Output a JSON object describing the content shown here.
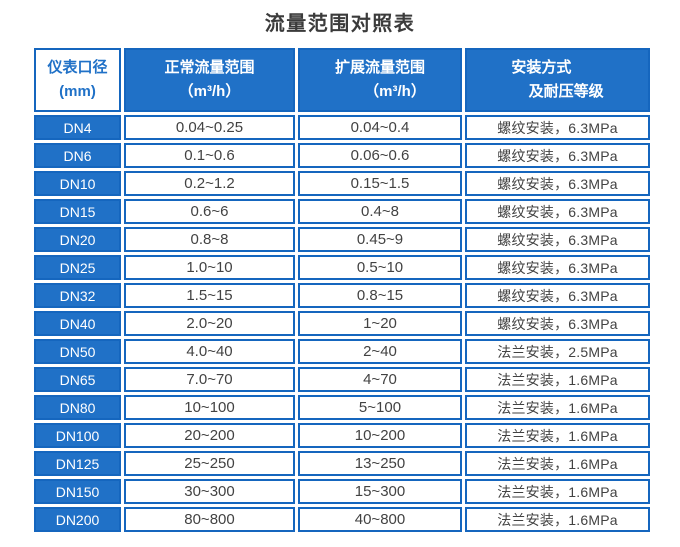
{
  "page": {
    "title": "流量范围对照表"
  },
  "colors": {
    "cell_blue": "#2071c7",
    "border_blue": "#1566be",
    "text_dark": "#424242",
    "header_text": "#ffffff"
  },
  "table": {
    "headers": {
      "diameter": {
        "line1": "仪表口径",
        "line2": "(mm)"
      },
      "normal": {
        "line1": "正常流量范围",
        "line2": "（m³/h）"
      },
      "extended": {
        "line1": "扩展流量范围",
        "line2": "（m³/h）"
      },
      "install": {
        "line1": "安装方式",
        "line2": "及耐压等级"
      }
    },
    "rows": [
      {
        "dn": "DN4",
        "normal": "0.04~0.25",
        "extended": "0.04~0.4",
        "install": "螺纹安装，6.3MPa"
      },
      {
        "dn": "DN6",
        "normal": "0.1~0.6",
        "extended": "0.06~0.6",
        "install": "螺纹安装，6.3MPa"
      },
      {
        "dn": "DN10",
        "normal": "0.2~1.2",
        "extended": "0.15~1.5",
        "install": "螺纹安装，6.3MPa"
      },
      {
        "dn": "DN15",
        "normal": "0.6~6",
        "extended": "0.4~8",
        "install": "螺纹安装，6.3MPa"
      },
      {
        "dn": "DN20",
        "normal": "0.8~8",
        "extended": "0.45~9",
        "install": "螺纹安装，6.3MPa"
      },
      {
        "dn": "DN25",
        "normal": "1.0~10",
        "extended": "0.5~10",
        "install": "螺纹安装，6.3MPa"
      },
      {
        "dn": "DN32",
        "normal": "1.5~15",
        "extended": "0.8~15",
        "install": "螺纹安装，6.3MPa"
      },
      {
        "dn": "DN40",
        "normal": "2.0~20",
        "extended": "1~20",
        "install": "螺纹安装，6.3MPa"
      },
      {
        "dn": "DN50",
        "normal": "4.0~40",
        "extended": "2~40",
        "install": "法兰安装，2.5MPa"
      },
      {
        "dn": "DN65",
        "normal": "7.0~70",
        "extended": "4~70",
        "install": "法兰安装，1.6MPa"
      },
      {
        "dn": "DN80",
        "normal": "10~100",
        "extended": "5~100",
        "install": "法兰安装，1.6MPa"
      },
      {
        "dn": "DN100",
        "normal": "20~200",
        "extended": "10~200",
        "install": "法兰安装，1.6MPa"
      },
      {
        "dn": "DN125",
        "normal": "25~250",
        "extended": "13~250",
        "install": "法兰安装，1.6MPa"
      },
      {
        "dn": "DN150",
        "normal": "30~300",
        "extended": "15~300",
        "install": "法兰安装，1.6MPa"
      },
      {
        "dn": "DN200",
        "normal": "80~800",
        "extended": "40~800",
        "install": "法兰安装，1.6MPa"
      }
    ]
  },
  "chart_data": {
    "type": "table",
    "title": "流量范围对照表",
    "columns": [
      "仪表口径 (mm)",
      "正常流量范围（m³/h）",
      "扩展流量范围（m³/h）",
      "安装方式及耐压等级"
    ],
    "rows": [
      [
        "DN4",
        "0.04~0.25",
        "0.04~0.4",
        "螺纹安装，6.3MPa"
      ],
      [
        "DN6",
        "0.1~0.6",
        "0.06~0.6",
        "螺纹安装，6.3MPa"
      ],
      [
        "DN10",
        "0.2~1.2",
        "0.15~1.5",
        "螺纹安装，6.3MPa"
      ],
      [
        "DN15",
        "0.6~6",
        "0.4~8",
        "螺纹安装，6.3MPa"
      ],
      [
        "DN20",
        "0.8~8",
        "0.45~9",
        "螺纹安装，6.3MPa"
      ],
      [
        "DN25",
        "1.0~10",
        "0.5~10",
        "螺纹安装，6.3MPa"
      ],
      [
        "DN32",
        "1.5~15",
        "0.8~15",
        "螺纹安装，6.3MPa"
      ],
      [
        "DN40",
        "2.0~20",
        "1~20",
        "螺纹安装，6.3MPa"
      ],
      [
        "DN50",
        "4.0~40",
        "2~40",
        "法兰安装，2.5MPa"
      ],
      [
        "DN65",
        "7.0~70",
        "4~70",
        "法兰安装，1.6MPa"
      ],
      [
        "DN80",
        "10~100",
        "5~100",
        "法兰安装，1.6MPa"
      ],
      [
        "DN100",
        "20~200",
        "10~200",
        "法兰安装，1.6MPa"
      ],
      [
        "DN125",
        "25~250",
        "13~250",
        "法兰安装，1.6MPa"
      ],
      [
        "DN150",
        "30~300",
        "15~300",
        "法兰安装，1.6MPa"
      ],
      [
        "DN200",
        "80~800",
        "40~800",
        "法兰安装，1.6MPa"
      ]
    ]
  }
}
